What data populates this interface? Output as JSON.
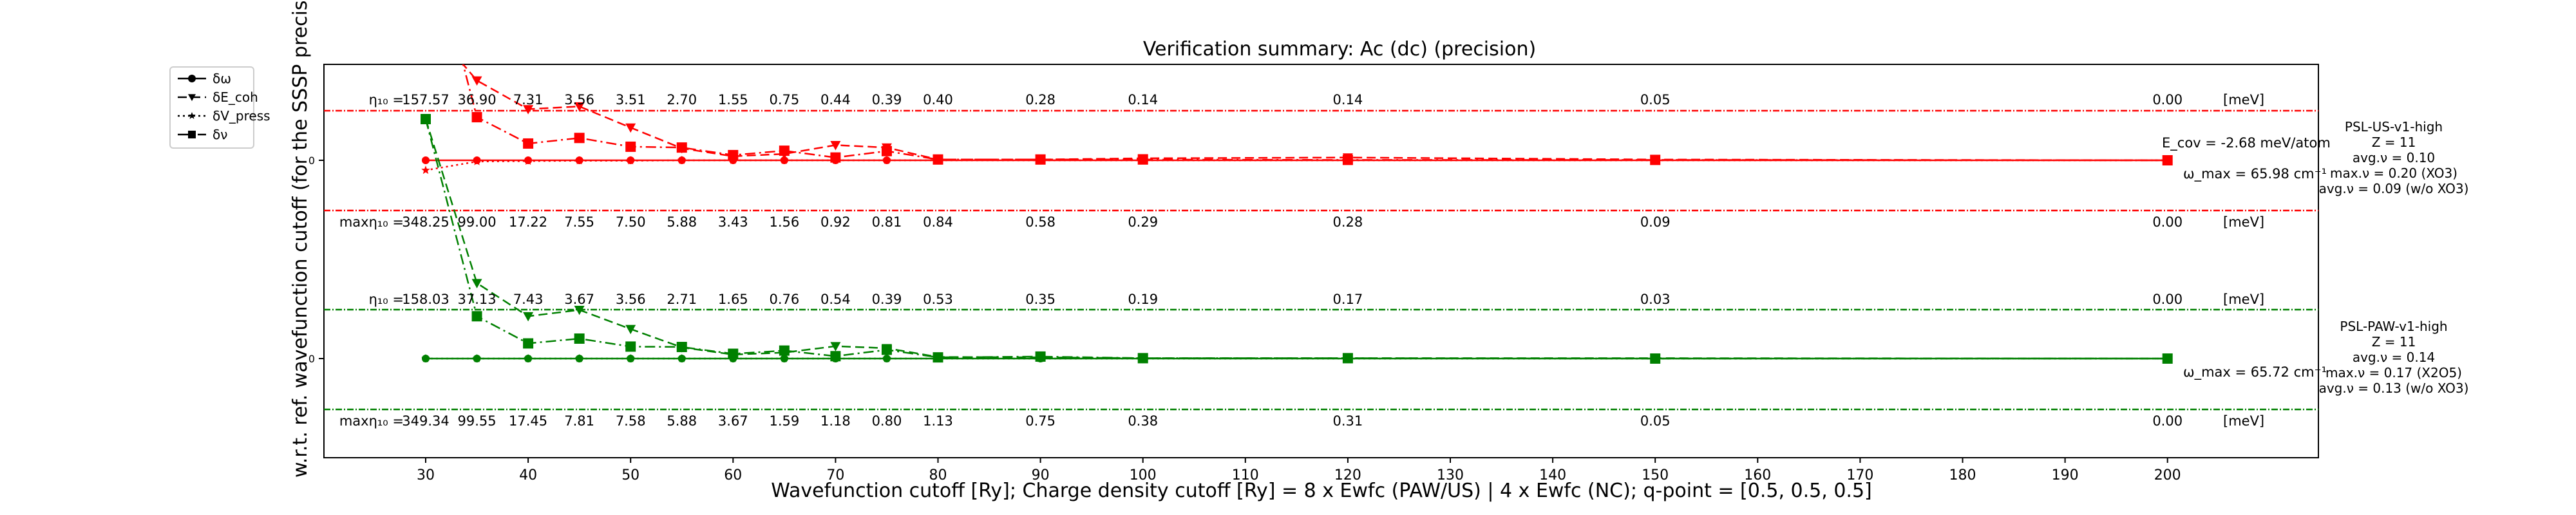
{
  "chart_data": {
    "type": "line",
    "title": "Verification summary: Ac (dc) (precision)",
    "xlabel": "Wavefunction cutoff [Ry]; Charge density cutoff [Ry] = 8 x Ewfc (PAW/US) | 4 x Ewfc (NC); q-point = [0.5, 0.5, 0.5]",
    "ylabel": "w.r.t. ref. wavefunction cutoff (for the SSSP precision crite",
    "xlim": [
      20,
      210
    ],
    "xticks": [
      30,
      40,
      50,
      60,
      70,
      80,
      90,
      100,
      110,
      120,
      130,
      140,
      150,
      160,
      170,
      180,
      190,
      200
    ],
    "grid": false,
    "legend_position": "upper-left (outside axes)",
    "legend": [
      {
        "label": "δω",
        "marker": "circle",
        "linestyle": "solid"
      },
      {
        "label": "δE_coh",
        "marker": "triangle-down",
        "linestyle": "dashed"
      },
      {
        "label": "δV_press",
        "marker": "star",
        "linestyle": "dotted"
      },
      {
        "label": "δν",
        "marker": "square",
        "linestyle": "dashdot"
      }
    ],
    "x": [
      30,
      35,
      40,
      45,
      50,
      55,
      60,
      65,
      70,
      75,
      80,
      90,
      100,
      120,
      150,
      200
    ],
    "panels": [
      {
        "name": "PSL-US-v1-high",
        "color": "#ff0000",
        "info_lines": [
          "PSL-US-v1-high",
          "Z = 11",
          "avg.ν = 0.10",
          "max.ν = 0.20 (XO3)",
          "avg.ν = 0.09 (w/o XO3)"
        ],
        "ecov_label": "E_cov = -2.68 meV/atom",
        "omega_max_label": "ω_max = 65.98 cm⁻¹",
        "eta_prefix": "η₁₀ =",
        "eta_values": [
          "157.57",
          "36.90",
          "7.31",
          "3.56",
          "3.51",
          "2.70",
          "1.55",
          "0.75",
          "0.44",
          "0.39",
          "0.40",
          "0.28",
          "0.14",
          "0.14",
          "0.05",
          "0.00"
        ],
        "max_eta_prefix": "maxη₁₀ =",
        "max_eta_values": [
          "348.25",
          "99.00",
          "17.22",
          "7.55",
          "7.50",
          "5.88",
          "3.43",
          "1.56",
          "0.92",
          "0.81",
          "0.84",
          "0.58",
          "0.29",
          "0.28",
          "0.09",
          "0.00"
        ],
        "unit": "[meV]",
        "zero_tick": "0",
        "series": {
          "omega": [
            0,
            0,
            0,
            0,
            0,
            0,
            0,
            0,
            0,
            0,
            0,
            0,
            0,
            0,
            0,
            0
          ],
          "ecoh": [
            3.5,
            2.0,
            1.28,
            1.35,
            0.82,
            0.3,
            0.1,
            0.16,
            0.38,
            0.32,
            0.02,
            0.02,
            0.05,
            0.07,
            0.02,
            0
          ],
          "vpress": [
            -0.25,
            -0.03,
            -0.02,
            -0.01,
            -0.01,
            0,
            0,
            0,
            0,
            0,
            0,
            0,
            0,
            0,
            0,
            0
          ],
          "nu": [
            6.0,
            1.08,
            0.42,
            0.56,
            0.34,
            0.32,
            0.13,
            0.24,
            0.07,
            0.23,
            0.02,
            0.02,
            0.02,
            0.01,
            0.01,
            0
          ]
        }
      },
      {
        "name": "PSL-PAW-v1-high",
        "color": "#008000",
        "info_lines": [
          "PSL-PAW-v1-high",
          "Z = 11",
          "avg.ν = 0.14",
          "max.ν = 0.17 (X2O5)",
          "avg.ν = 0.13 (w/o XO3)"
        ],
        "ecov_label": "",
        "omega_max_label": "ω_max = 65.72 cm⁻¹",
        "eta_prefix": "η₁₀ =",
        "eta_values": [
          "158.03",
          "37.13",
          "7.43",
          "3.67",
          "3.56",
          "2.71",
          "1.65",
          "0.76",
          "0.54",
          "0.39",
          "0.53",
          "0.35",
          "0.19",
          "0.17",
          "0.03",
          "0.00"
        ],
        "max_eta_prefix": "maxη₁₀ =",
        "max_eta_values": [
          "349.34",
          "99.55",
          "17.45",
          "7.81",
          "7.58",
          "5.88",
          "3.67",
          "1.59",
          "1.18",
          "0.80",
          "1.13",
          "0.75",
          "0.38",
          "0.31",
          "0.05",
          "0.00"
        ],
        "unit": "[meV]",
        "zero_tick": "0",
        "series": {
          "omega": [
            0,
            0,
            0,
            0,
            0,
            0,
            0,
            0,
            0,
            0,
            0,
            0,
            0,
            0,
            0,
            0
          ],
          "ecoh": [
            6.0,
            1.89,
            1.06,
            1.22,
            0.74,
            0.28,
            0.1,
            0.15,
            0.31,
            0.26,
            0.04,
            0.03,
            0.01,
            0.01,
            0.01,
            0
          ],
          "vpress": [
            0,
            0,
            0,
            0,
            0,
            0,
            0,
            0,
            0,
            0,
            0,
            0,
            0,
            0,
            0,
            0
          ],
          "nu": [
            6.0,
            1.06,
            0.38,
            0.5,
            0.3,
            0.29,
            0.12,
            0.2,
            0.06,
            0.22,
            0.03,
            0.05,
            0.01,
            0.01,
            0,
            0
          ]
        }
      }
    ]
  }
}
